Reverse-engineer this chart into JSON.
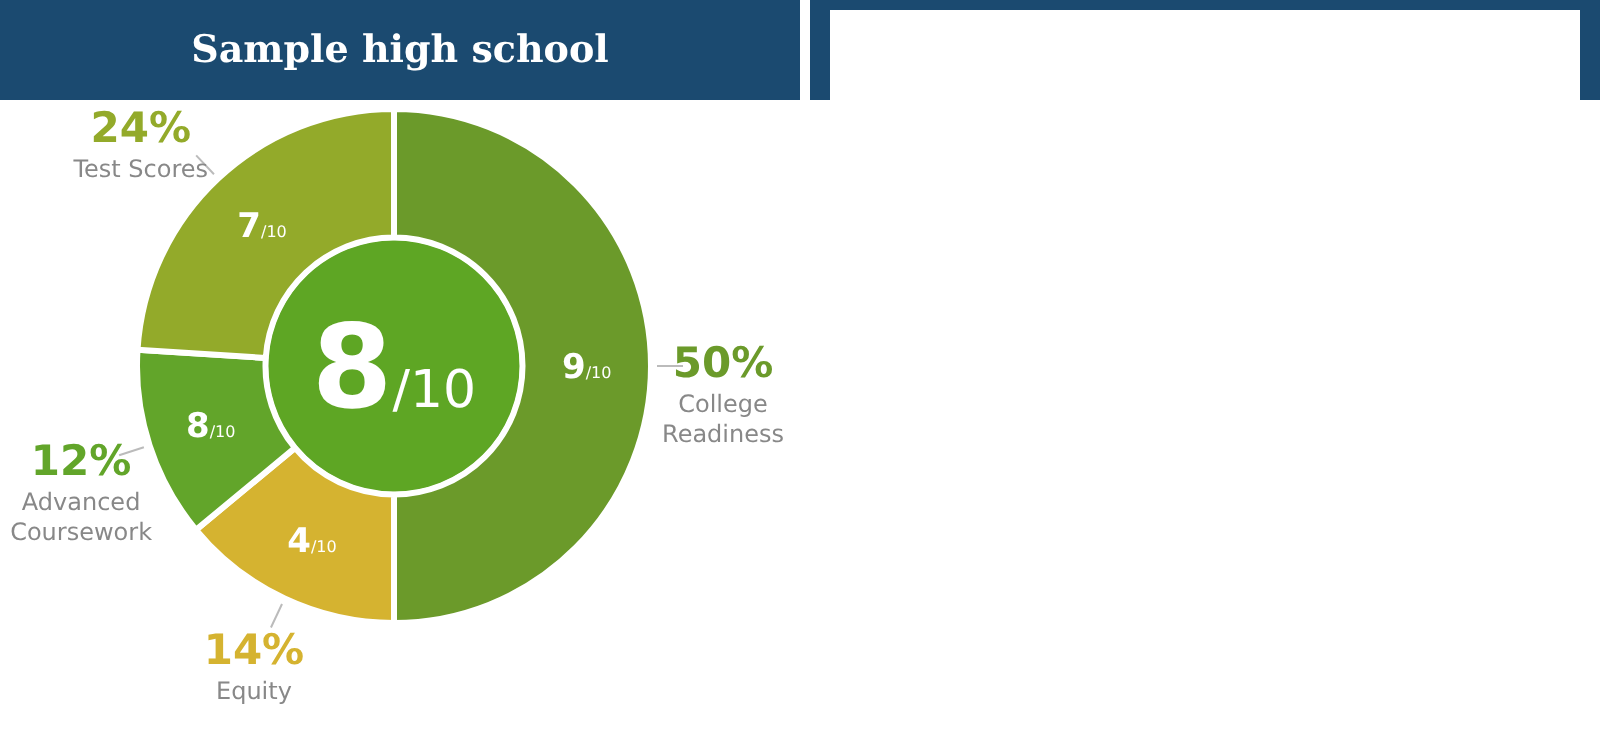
{
  "chart_data": {
    "type": "donut",
    "title": "Sample high school",
    "categories": [
      "College Readiness",
      "Equity",
      "Advanced Coursework",
      "Test Scores"
    ],
    "values": [
      50,
      14,
      12,
      24
    ],
    "colors": [
      "#6b9a2a",
      "#d5b330",
      "#62a52a",
      "#93aa2a"
    ],
    "value_labels": [
      "50%",
      "14%",
      "12%",
      "24%"
    ],
    "annotations": [
      "8/10",
      {
        "text": "9/10",
        "x": "College Readiness"
      },
      {
        "text": "4/10",
        "x": "Equity"
      },
      {
        "text": "8/10",
        "x": "Advanced Coursework"
      },
      {
        "text": "7/10",
        "x": "Test Scores"
      }
    ]
  }
}
